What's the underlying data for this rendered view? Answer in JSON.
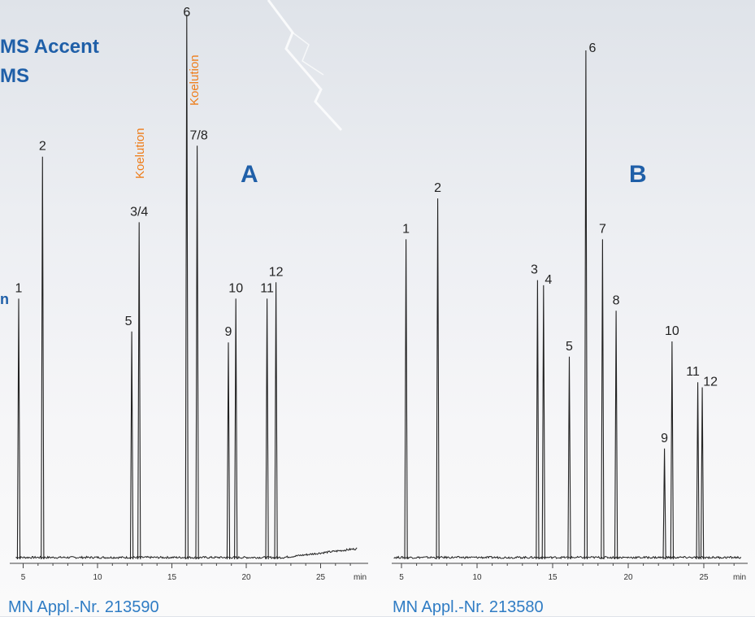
{
  "header": {
    "title_line1": "MS Accent",
    "title_line2": "MS",
    "side_label": "n"
  },
  "colors": {
    "accent": "#1f5fa8",
    "annotation": "#ee7d1a",
    "appl": "#2f7cc4",
    "trace": "#222222"
  },
  "chart_data": [
    {
      "type": "line",
      "panel": "A",
      "xlabel": "min",
      "x_ticks": [
        5,
        10,
        15,
        20,
        25
      ],
      "xlim": [
        4.5,
        27.5
      ],
      "ylim": [
        0,
        100
      ],
      "grid": false,
      "footer": "MN Appl.-Nr. 213590",
      "peaks": [
        {
          "label": "1",
          "x": 4.7,
          "height": 48
        },
        {
          "label": "2",
          "x": 6.3,
          "height": 74
        },
        {
          "label": "5",
          "x": 12.3,
          "height": 42
        },
        {
          "label": "3/4",
          "x": 12.8,
          "height": 62
        },
        {
          "label": "6",
          "x": 16.0,
          "height": 100
        },
        {
          "label": "7/8",
          "x": 16.7,
          "height": 76
        },
        {
          "label": "9",
          "x": 18.8,
          "height": 40
        },
        {
          "label": "10",
          "x": 19.3,
          "height": 48
        },
        {
          "label": "11",
          "x": 21.4,
          "height": 48
        },
        {
          "label": "12",
          "x": 22.0,
          "height": 51
        }
      ],
      "annotations": [
        {
          "text": "Koelution",
          "near": "3/4"
        },
        {
          "text": "Koelution",
          "near": "6"
        }
      ]
    },
    {
      "type": "line",
      "panel": "B",
      "xlabel": "min",
      "x_ticks": [
        5,
        10,
        15,
        20,
        25
      ],
      "xlim": [
        4.5,
        27.5
      ],
      "ylim": [
        0,
        100
      ],
      "grid": false,
      "footer": "MN Appl.-Nr. 213580",
      "peaks": [
        {
          "label": "1",
          "x": 5.3,
          "height": 63
        },
        {
          "label": "2",
          "x": 7.4,
          "height": 71
        },
        {
          "label": "3",
          "x": 14.0,
          "height": 55
        },
        {
          "label": "4",
          "x": 14.4,
          "height": 54
        },
        {
          "label": "5",
          "x": 16.1,
          "height": 40
        },
        {
          "label": "6",
          "x": 17.2,
          "height": 100
        },
        {
          "label": "7",
          "x": 18.3,
          "height": 63
        },
        {
          "label": "8",
          "x": 19.2,
          "height": 49
        },
        {
          "label": "9",
          "x": 22.4,
          "height": 22
        },
        {
          "label": "10",
          "x": 22.9,
          "height": 43
        },
        {
          "label": "11",
          "x": 24.6,
          "height": 35
        },
        {
          "label": "12",
          "x": 24.9,
          "height": 34
        }
      ]
    }
  ]
}
